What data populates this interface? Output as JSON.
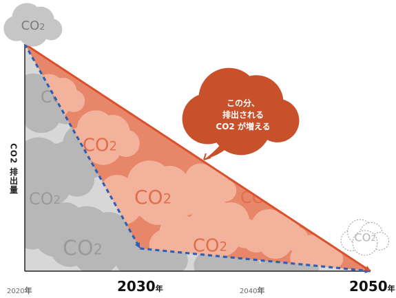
{
  "chart_data": {
    "type": "line",
    "ylabel": "CO2 排出量",
    "x_ticks": [
      {
        "year": "2020",
        "unit": "年",
        "major": false
      },
      {
        "year": "2030",
        "unit": "年",
        "major": true
      },
      {
        "year": "2040",
        "unit": "年",
        "major": false
      },
      {
        "year": "2050",
        "unit": "年",
        "major": true
      }
    ],
    "series": [
      {
        "style": "solid",
        "color": "#d9502c",
        "points": [
          [
            2020,
            1.0
          ],
          [
            2050,
            0.0
          ]
        ]
      },
      {
        "style": "dashed",
        "color": "#2f5fb3",
        "points": [
          [
            2020,
            1.0
          ],
          [
            2030,
            0.1
          ],
          [
            2050,
            0.0
          ]
        ]
      }
    ],
    "xlim": [
      2020,
      2050
    ],
    "ylim": [
      0,
      1
    ],
    "annotation": {
      "lines": [
        "この分、",
        "排出される",
        "CO2 が増える"
      ],
      "color": "#c8502a"
    },
    "cloud_label": "CO2",
    "colors": {
      "excess_area": "#e8866a",
      "excess_cloud": "#f3b29c",
      "base_area": "#d7d7d7",
      "gray_cloud": "#b7b7b7",
      "solid_line": "#d9502c",
      "dashed_line": "#2f5fb3"
    }
  }
}
